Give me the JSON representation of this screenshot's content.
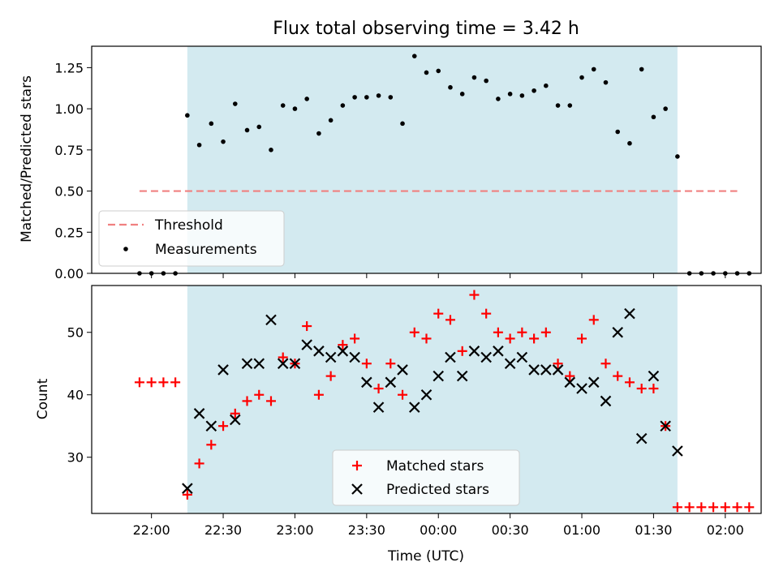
{
  "title": "Flux total observing time = 3.42 h",
  "colors": {
    "span": "#d3eaf0",
    "threshold": "#f08080",
    "matched": "#ff0000",
    "predicted": "#000000",
    "measurement": "#000000"
  },
  "chart_data": [
    {
      "type": "scatter",
      "title": "Flux total observing time = 3.42 h",
      "xlabel": "",
      "ylabel": "Matched/Predicted stars",
      "ylim": [
        0,
        1.38
      ],
      "yticks": [
        "0.00",
        "0.25",
        "0.50",
        "0.75",
        "1.00",
        "1.25"
      ],
      "shaded_span": {
        "start": "22:15",
        "end": "01:40"
      },
      "legend_position": "lower-left",
      "threshold": {
        "name": "Threshold",
        "value": 0.5,
        "x_start": "21:55",
        "x_end": "02:05"
      },
      "series": [
        {
          "name": "Measurements",
          "x": [
            "21:55",
            "22:00",
            "22:05",
            "22:10",
            "22:15",
            "22:20",
            "22:25",
            "22:30",
            "22:35",
            "22:40",
            "22:45",
            "22:50",
            "22:55",
            "23:00",
            "23:05",
            "23:10",
            "23:15",
            "23:20",
            "23:25",
            "23:30",
            "23:35",
            "23:40",
            "23:45",
            "23:50",
            "23:55",
            "00:00",
            "00:05",
            "00:10",
            "00:15",
            "00:20",
            "00:25",
            "00:30",
            "00:35",
            "00:40",
            "00:45",
            "00:50",
            "00:55",
            "01:00",
            "01:05",
            "01:10",
            "01:15",
            "01:20",
            "01:25",
            "01:30",
            "01:35",
            "01:40",
            "01:45",
            "01:50",
            "01:55",
            "02:00",
            "02:05",
            "02:10"
          ],
          "y": [
            0,
            0,
            0,
            0,
            0.96,
            0.78,
            0.91,
            0.8,
            1.03,
            0.87,
            0.89,
            0.75,
            1.02,
            1.0,
            1.06,
            0.85,
            0.93,
            1.02,
            1.07,
            1.07,
            1.08,
            1.07,
            0.91,
            1.32,
            1.22,
            1.23,
            1.13,
            1.09,
            1.19,
            1.17,
            1.06,
            1.09,
            1.08,
            1.11,
            1.14,
            1.02,
            1.02,
            1.19,
            1.24,
            1.16,
            0.86,
            0.79,
            1.24,
            0.95,
            1.0,
            0.71,
            0,
            0,
            0,
            0,
            0,
            0
          ]
        }
      ]
    },
    {
      "type": "scatter",
      "xlabel": "Time (UTC)",
      "ylabel": "Count",
      "ylim": [
        21,
        57.5
      ],
      "yticks": [
        "30",
        "40",
        "50"
      ],
      "xticks": [
        "22:00",
        "22:30",
        "23:00",
        "23:30",
        "00:00",
        "00:30",
        "01:00",
        "01:30",
        "02:00"
      ],
      "shaded_span": {
        "start": "22:15",
        "end": "01:40"
      },
      "legend_position": "lower-center",
      "series": [
        {
          "name": "Matched stars",
          "marker": "+",
          "x": [
            "21:55",
            "22:00",
            "22:05",
            "22:10",
            "22:15",
            "22:20",
            "22:25",
            "22:30",
            "22:35",
            "22:40",
            "22:45",
            "22:50",
            "22:55",
            "23:00",
            "23:05",
            "23:10",
            "23:15",
            "23:20",
            "23:25",
            "23:30",
            "23:35",
            "23:40",
            "23:45",
            "23:50",
            "23:55",
            "00:00",
            "00:05",
            "00:10",
            "00:15",
            "00:20",
            "00:25",
            "00:30",
            "00:35",
            "00:40",
            "00:45",
            "00:50",
            "00:55",
            "01:00",
            "01:05",
            "01:10",
            "01:15",
            "01:20",
            "01:25",
            "01:30",
            "01:35",
            "01:40",
            "01:45",
            "01:50",
            "01:55",
            "02:00",
            "02:05",
            "02:10"
          ],
          "y": [
            42,
            42,
            42,
            42,
            24,
            29,
            32,
            35,
            37,
            39,
            40,
            39,
            46,
            45,
            51,
            40,
            43,
            48,
            49,
            45,
            41,
            45,
            40,
            50,
            49,
            53,
            52,
            47,
            56,
            53,
            50,
            49,
            50,
            49,
            50,
            45,
            43,
            49,
            52,
            45,
            43,
            42,
            41,
            41,
            35,
            22,
            22,
            22,
            22,
            22,
            22,
            22
          ]
        },
        {
          "name": "Predicted stars",
          "marker": "x",
          "x": [
            "22:15",
            "22:20",
            "22:25",
            "22:30",
            "22:35",
            "22:40",
            "22:45",
            "22:50",
            "22:55",
            "23:00",
            "23:05",
            "23:10",
            "23:15",
            "23:20",
            "23:25",
            "23:30",
            "23:35",
            "23:40",
            "23:45",
            "23:50",
            "23:55",
            "00:00",
            "00:05",
            "00:10",
            "00:15",
            "00:20",
            "00:25",
            "00:30",
            "00:35",
            "00:40",
            "00:45",
            "00:50",
            "00:55",
            "01:00",
            "01:05",
            "01:10",
            "01:15",
            "01:20",
            "01:25",
            "01:30",
            "01:35",
            "01:40"
          ],
          "y": [
            25,
            37,
            35,
            44,
            36,
            45,
            45,
            52,
            45,
            45,
            48,
            47,
            46,
            47,
            46,
            42,
            38,
            42,
            44,
            38,
            40,
            43,
            46,
            43,
            47,
            46,
            47,
            45,
            46,
            44,
            44,
            44,
            42,
            41,
            42,
            39,
            50,
            53,
            33,
            43,
            35,
            31
          ]
        }
      ]
    }
  ]
}
